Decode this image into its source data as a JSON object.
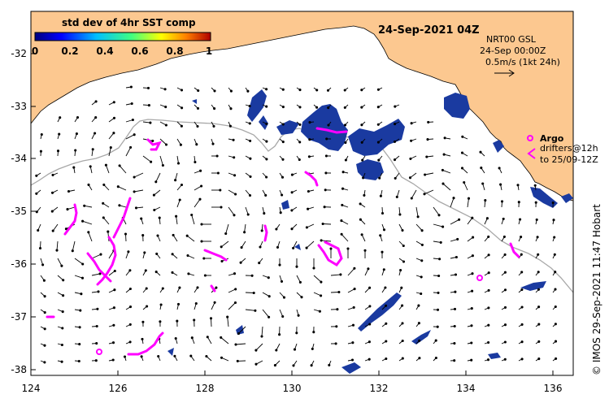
{
  "title": "24-Sep-2021 04Z",
  "colorbar": {
    "title": "std dev of 4hr SST comp",
    "ticks": [
      "0",
      "0.2",
      "0.4",
      "0.6",
      "0.8",
      "1"
    ],
    "colors": [
      "#00007f",
      "#0000ff",
      "#00bfff",
      "#40ff80",
      "#ffff00",
      "#ff8000",
      "#b00000"
    ]
  },
  "info": {
    "line1": "NRT00 GSL",
    "line2": "24-Sep 00:00Z",
    "line3": "0.5m/s (1kt 24h)"
  },
  "legend": {
    "argo_label": "Argo",
    "drifters_line1": "drifters@12h",
    "drifters_line2": "to 25/09-12Z"
  },
  "credit": "© IMOS 29-Sep-2021 11:47 Hobart",
  "x_ticks": [
    "124",
    "126",
    "128",
    "130",
    "132",
    "134",
    "136"
  ],
  "y_ticks": [
    "-32",
    "-33",
    "-34",
    "-35",
    "-36",
    "-37",
    "-38"
  ],
  "colors": {
    "land": "#fcc890",
    "sst_patch": "#1a3aa0",
    "drifter": "#ff00ff",
    "contour": "#a8a8a8"
  }
}
